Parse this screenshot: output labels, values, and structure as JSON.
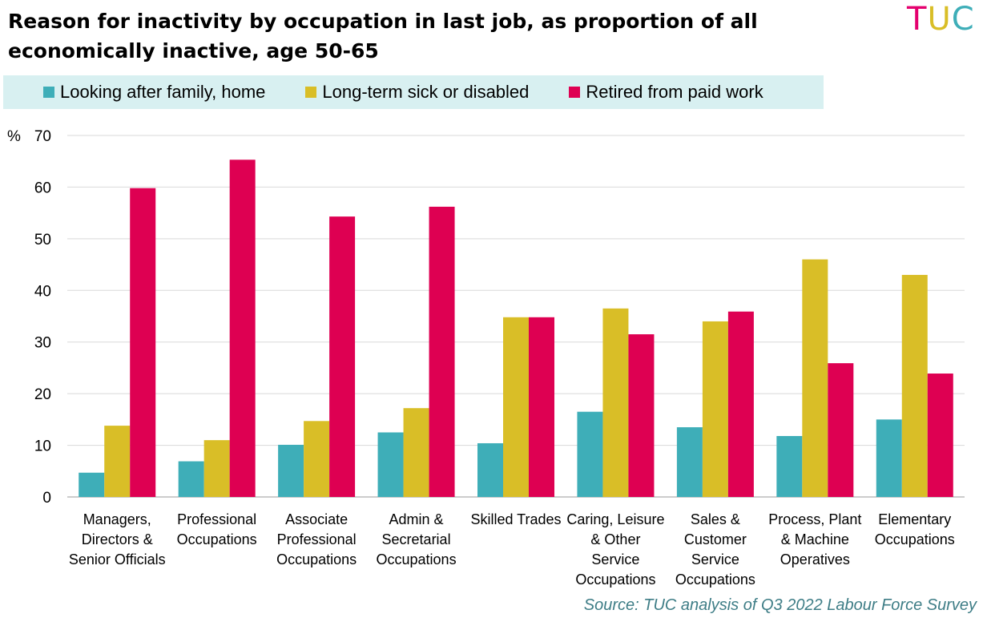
{
  "title": "Reason for inactivity by occupation in last job, as proportion of all economically inactive, age 50-65",
  "logo": {
    "text": [
      "T",
      "U",
      "C"
    ],
    "colors": [
      "#e4006e",
      "#d9be27",
      "#3eaeb8"
    ]
  },
  "source": "Source: TUC analysis of Q3 2022 Labour Force Survey",
  "chart_data": {
    "type": "bar",
    "title": "Reason for inactivity by occupation in last job, as proportion of all economically inactive, age 50-65",
    "ylabel": "%",
    "ylim": [
      0,
      70
    ],
    "yticks": [
      0,
      10,
      20,
      30,
      40,
      50,
      60,
      70
    ],
    "grid": true,
    "legend_position": "top",
    "categories": [
      [
        "Managers,",
        "Directors &",
        "Senior Officials"
      ],
      [
        "Professional",
        "Occupations"
      ],
      [
        "Associate",
        "Professional",
        "Occupations"
      ],
      [
        "Admin &",
        "Secretarial",
        "Occupations"
      ],
      [
        "Skilled Trades"
      ],
      [
        "Caring, Leisure",
        "& Other",
        "Service",
        "Occupations"
      ],
      [
        "Sales &",
        "Customer",
        "Service",
        "Occupations"
      ],
      [
        "Process, Plant",
        "& Machine",
        "Operatives"
      ],
      [
        "Elementary",
        "Occupations"
      ]
    ],
    "series": [
      {
        "name": "Looking after family, home",
        "color": "#3eaeb8",
        "values": [
          4.7,
          6.9,
          10.1,
          12.5,
          10.4,
          16.5,
          13.5,
          11.8,
          15.0
        ]
      },
      {
        "name": "Long-term sick or disabled",
        "color": "#d9be27",
        "values": [
          13.8,
          11.0,
          14.7,
          17.2,
          34.8,
          36.5,
          34.0,
          46.0,
          43.0
        ]
      },
      {
        "name": "Retired from paid work",
        "color": "#de0052",
        "values": [
          59.8,
          65.3,
          54.3,
          56.2,
          34.8,
          31.5,
          35.9,
          25.9,
          23.9
        ]
      }
    ]
  }
}
